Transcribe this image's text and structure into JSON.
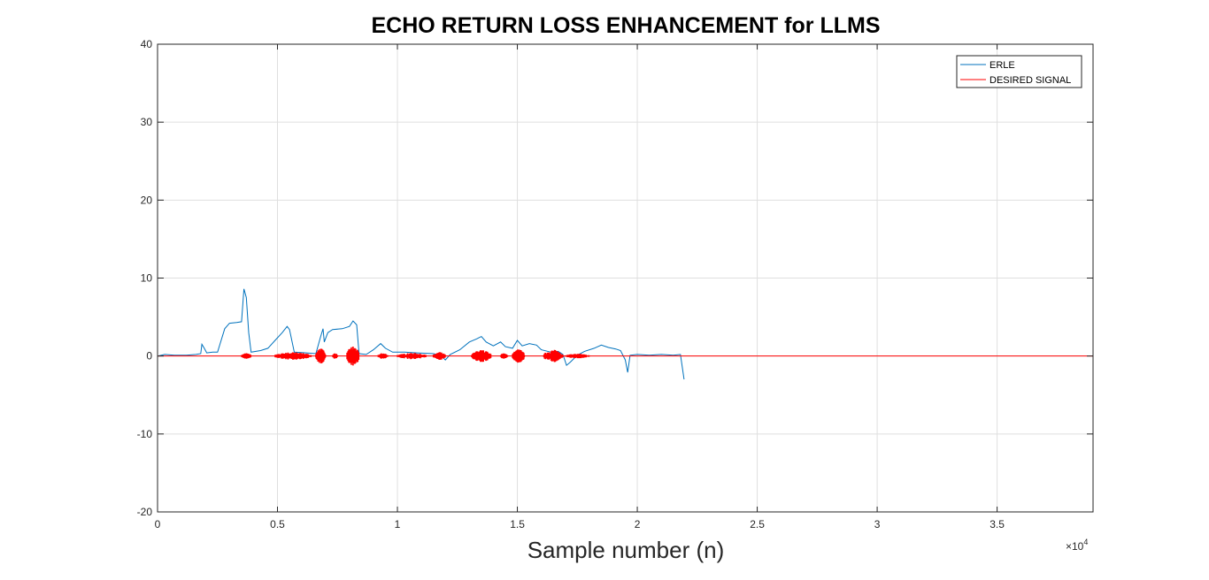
{
  "chart_data": {
    "type": "line",
    "title": "ECHO RETURN LOSS ENHANCEMENT for LLMS",
    "xlabel": "Sample number (n)",
    "ylabel": "",
    "xlim": [
      0,
      39000
    ],
    "ylim": [
      -20,
      40
    ],
    "x_exponent_label": "×10",
    "x_exponent_power": "4",
    "xticks": [
      0,
      5000,
      10000,
      15000,
      20000,
      25000,
      30000,
      35000
    ],
    "xtick_labels": [
      "0",
      "0.5",
      "1",
      "1.5",
      "2",
      "2.5",
      "3",
      "3.5"
    ],
    "yticks": [
      -20,
      -10,
      0,
      10,
      20,
      30,
      40
    ],
    "ytick_labels": [
      "-20",
      "-10",
      "0",
      "10",
      "20",
      "30",
      "40"
    ],
    "grid": true,
    "legend_position": "top-right",
    "series": [
      {
        "name": "ERLE",
        "color": "#0072bd",
        "points": [
          [
            0,
            0
          ],
          [
            300,
            0.2
          ],
          [
            700,
            0.1
          ],
          [
            1200,
            0.1
          ],
          [
            1600,
            0.2
          ],
          [
            1800,
            0.3
          ],
          [
            1850,
            1.5
          ],
          [
            1950,
            1.0
          ],
          [
            2050,
            0.4
          ],
          [
            2300,
            0.5
          ],
          [
            2500,
            0.5
          ],
          [
            2600,
            1.5
          ],
          [
            2800,
            3.5
          ],
          [
            3000,
            4.2
          ],
          [
            3300,
            4.3
          ],
          [
            3500,
            4.4
          ],
          [
            3600,
            8.6
          ],
          [
            3700,
            7.5
          ],
          [
            3800,
            3.0
          ],
          [
            3900,
            0.5
          ],
          [
            4300,
            0.7
          ],
          [
            4600,
            1.0
          ],
          [
            4900,
            2.0
          ],
          [
            5200,
            3.0
          ],
          [
            5400,
            3.8
          ],
          [
            5500,
            3.4
          ],
          [
            5700,
            0.5
          ],
          [
            6200,
            0.4
          ],
          [
            6600,
            0.3
          ],
          [
            6800,
            2.5
          ],
          [
            6900,
            3.5
          ],
          [
            6950,
            1.8
          ],
          [
            7100,
            3.0
          ],
          [
            7300,
            3.4
          ],
          [
            7700,
            3.5
          ],
          [
            8000,
            3.8
          ],
          [
            8150,
            4.5
          ],
          [
            8300,
            4.0
          ],
          [
            8400,
            0.3
          ],
          [
            8700,
            0.2
          ],
          [
            9000,
            0.8
          ],
          [
            9300,
            1.6
          ],
          [
            9500,
            1.0
          ],
          [
            9800,
            0.5
          ],
          [
            10300,
            0.5
          ],
          [
            10800,
            0.4
          ],
          [
            11500,
            0.3
          ],
          [
            11800,
            0.1
          ],
          [
            12000,
            -0.5
          ],
          [
            12200,
            0.2
          ],
          [
            12600,
            0.8
          ],
          [
            13000,
            1.8
          ],
          [
            13300,
            2.2
          ],
          [
            13500,
            2.5
          ],
          [
            13700,
            1.8
          ],
          [
            14000,
            1.3
          ],
          [
            14300,
            1.8
          ],
          [
            14500,
            1.2
          ],
          [
            14800,
            1.0
          ],
          [
            15000,
            2.0
          ],
          [
            15200,
            1.3
          ],
          [
            15500,
            1.6
          ],
          [
            15800,
            1.4
          ],
          [
            16000,
            0.8
          ],
          [
            16400,
            0.5
          ],
          [
            16700,
            0.6
          ],
          [
            16900,
            0.2
          ],
          [
            17050,
            -1.2
          ],
          [
            17200,
            -0.8
          ],
          [
            17500,
            0.1
          ],
          [
            17800,
            0.6
          ],
          [
            18200,
            1.0
          ],
          [
            18500,
            1.4
          ],
          [
            18800,
            1.1
          ],
          [
            19100,
            0.9
          ],
          [
            19300,
            0.7
          ],
          [
            19500,
            -0.5
          ],
          [
            19600,
            -2.1
          ],
          [
            19700,
            0.1
          ],
          [
            20000,
            0.2
          ],
          [
            20500,
            0.1
          ],
          [
            21000,
            0.2
          ],
          [
            21500,
            0.1
          ],
          [
            21800,
            0.2
          ],
          [
            21950,
            -3.0
          ]
        ]
      },
      {
        "name": "DESIRED SIGNAL",
        "color": "#ff0000",
        "baseline": 0,
        "bursts": [
          [
            3500,
            3900,
            0.4
          ],
          [
            4900,
            6400,
            0.5
          ],
          [
            6600,
            7000,
            1.0
          ],
          [
            7300,
            7500,
            0.4
          ],
          [
            7900,
            8400,
            1.3
          ],
          [
            9200,
            9600,
            0.4
          ],
          [
            10000,
            11200,
            0.4
          ],
          [
            11500,
            12000,
            0.5
          ],
          [
            13100,
            13900,
            0.8
          ],
          [
            14300,
            14600,
            0.4
          ],
          [
            14800,
            15300,
            0.9
          ],
          [
            16100,
            16900,
            0.8
          ],
          [
            17000,
            18000,
            0.3
          ]
        ],
        "end_x": 39000
      }
    ]
  }
}
